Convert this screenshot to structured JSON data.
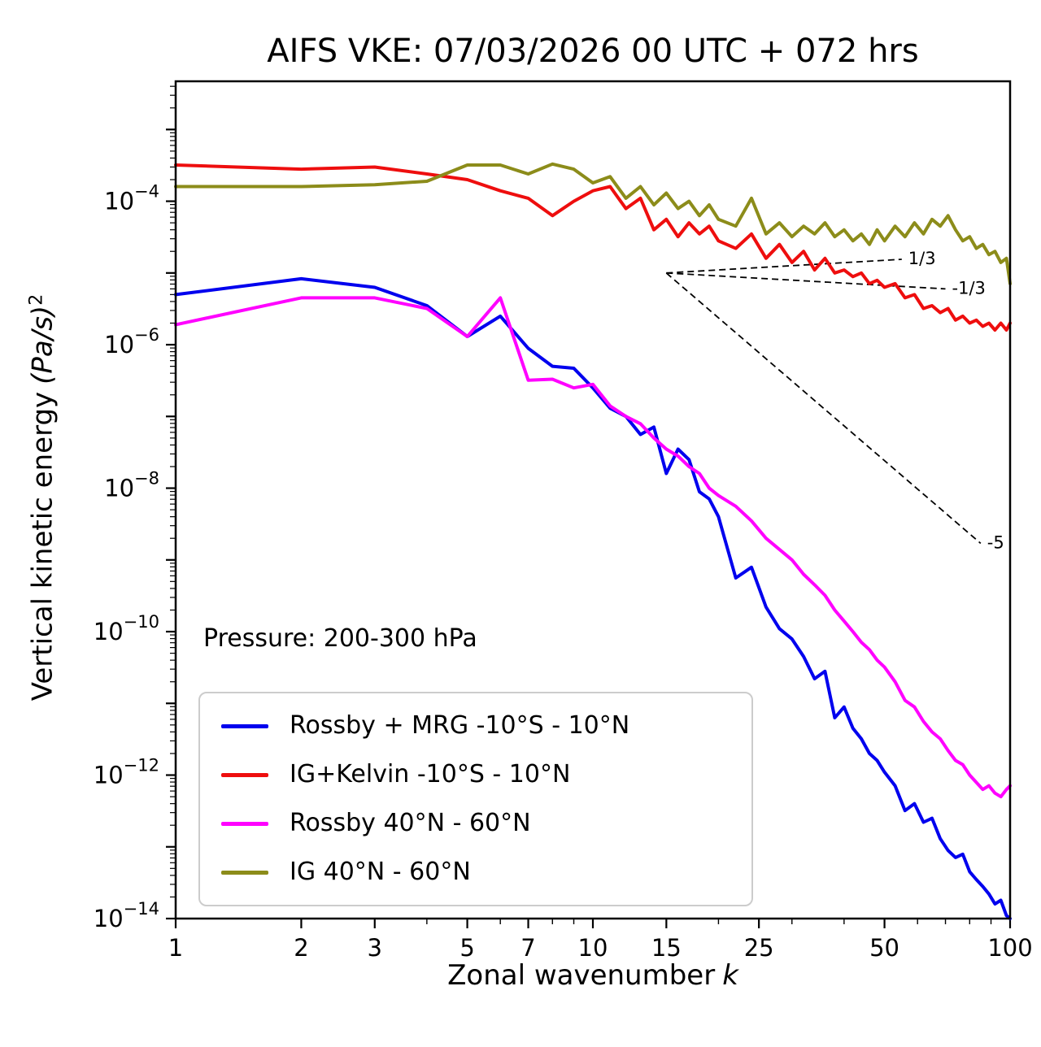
{
  "annotation": {
    "pressure_label": "Pressure: 200-300 hPa"
  },
  "chart_data": {
    "type": "line",
    "title": "AIFS VKE: 07/03/2026 00 UTC + 072 hrs",
    "xlabel": "Zonal wavenumber",
    "xlabel_variable": "k",
    "ylabel": "Vertical kinetic energy",
    "ylabel_units": "(Pa/s)",
    "ylabel_units_exponent": "2",
    "xscale": "log",
    "yscale": "log",
    "grid": false,
    "legend_position": "lower left",
    "xlim": [
      1,
      100
    ],
    "ylim": [
      1e-14,
      0.0047
    ],
    "xticks": [
      1,
      2,
      3,
      5,
      7,
      10,
      15,
      25,
      50,
      100
    ],
    "xticks_minor": [
      4,
      6,
      8,
      9,
      20,
      30,
      40,
      60,
      70,
      80,
      90
    ],
    "ytick_exponents": [
      -4,
      -6,
      -8,
      -10,
      -12,
      -14
    ],
    "x": [
      1,
      2,
      3,
      4,
      5,
      6,
      7,
      8,
      9,
      10,
      11,
      12,
      13,
      14,
      15,
      16,
      17,
      18,
      19,
      20,
      22,
      24,
      26,
      28,
      30,
      32,
      34,
      36,
      38,
      40,
      42,
      44,
      46,
      48,
      50,
      53,
      56,
      59,
      62,
      65,
      68,
      71,
      74,
      77,
      80,
      83,
      86,
      89,
      92,
      95,
      98,
      100
    ],
    "series": [
      {
        "id": "rossby-mrg-tropics",
        "label": "Rossby + MRG -10°S - 10°N",
        "color": "#0000ee",
        "values": [
          5e-06,
          8.3e-06,
          6.3e-06,
          3.5e-06,
          1.3e-06,
          2.5e-06,
          8.9e-07,
          5e-07,
          4.7e-07,
          2.5e-07,
          1.3e-07,
          1e-07,
          5.6e-08,
          7.1e-08,
          1.6e-08,
          3.5e-08,
          2.5e-08,
          8.9e-09,
          7.1e-09,
          4e-09,
          5.6e-10,
          7.9e-10,
          2.2e-10,
          1.1e-10,
          7.9e-11,
          4.5e-11,
          2.2e-11,
          2.8e-11,
          6.3e-12,
          8.9e-12,
          4.5e-12,
          3.2e-12,
          2e-12,
          1.6e-12,
          1.1e-12,
          7.1e-13,
          3.2e-13,
          4e-13,
          2.2e-13,
          2.5e-13,
          1.3e-13,
          8.9e-14,
          7.1e-14,
          7.9e-14,
          4.5e-14,
          3.5e-14,
          2.8e-14,
          2.2e-14,
          1.6e-14,
          1.8e-14,
          1.1e-14,
          1e-14
        ]
      },
      {
        "id": "ig-kelvin-tropics",
        "label": "IG+Kelvin -10°S - 10°N",
        "color": "#ee0e0e",
        "values": [
          0.00032,
          0.00028,
          0.0003,
          0.00024,
          0.0002,
          0.00014,
          0.00011,
          6.3e-05,
          0.0001,
          0.00014,
          0.00016,
          7.9e-05,
          0.00011,
          4e-05,
          5.6e-05,
          3.2e-05,
          5e-05,
          3.5e-05,
          4.5e-05,
          2.8e-05,
          2.2e-05,
          3.5e-05,
          1.6e-05,
          2.5e-05,
          1.4e-05,
          2e-05,
          1.1e-05,
          1.6e-05,
          1e-05,
          1.1e-05,
          8.9e-06,
          1e-05,
          7.1e-06,
          7.9e-06,
          6.3e-06,
          7.1e-06,
          4.5e-06,
          5e-06,
          3.2e-06,
          3.5e-06,
          2.8e-06,
          3.2e-06,
          2.2e-06,
          2.5e-06,
          2e-06,
          2.2e-06,
          1.8e-06,
          2e-06,
          1.6e-06,
          2e-06,
          1.6e-06,
          2e-06
        ]
      },
      {
        "id": "rossby-midlat",
        "label": "Rossby 40°N - 60°N",
        "color": "#ff00ff",
        "values": [
          1.9e-06,
          4.5e-06,
          4.5e-06,
          3.2e-06,
          1.3e-06,
          4.5e-06,
          3.2e-07,
          3.3e-07,
          2.5e-07,
          2.8e-07,
          1.4e-07,
          1e-07,
          7.9e-08,
          5e-08,
          3.5e-08,
          2.8e-08,
          2e-08,
          1.6e-08,
          1e-08,
          7.9e-09,
          5.6e-09,
          3.5e-09,
          2e-09,
          1.4e-09,
          1e-09,
          6.3e-10,
          4.5e-10,
          3.2e-10,
          2e-10,
          1.4e-10,
          1e-10,
          7.1e-11,
          5.6e-11,
          4e-11,
          3.2e-11,
          2e-11,
          1.1e-11,
          8.9e-12,
          5.6e-12,
          4e-12,
          3.2e-12,
          2.2e-12,
          1.6e-12,
          1.4e-12,
          1e-12,
          7.9e-13,
          6.3e-13,
          7.1e-13,
          5.6e-13,
          5e-13,
          6.3e-13,
          7.1e-13
        ]
      },
      {
        "id": "ig-midlat",
        "label": "IG 40°N - 60°N",
        "color": "#8c8c1a",
        "values": [
          0.00016,
          0.00016,
          0.00017,
          0.00019,
          0.00032,
          0.00032,
          0.00024,
          0.00033,
          0.00028,
          0.00018,
          0.00022,
          0.00011,
          0.00016,
          8.9e-05,
          0.00013,
          7.9e-05,
          0.0001,
          6.3e-05,
          8.9e-05,
          5.6e-05,
          4.5e-05,
          0.00011,
          3.5e-05,
          5e-05,
          3.2e-05,
          4.5e-05,
          3.5e-05,
          5e-05,
          3.2e-05,
          4e-05,
          2.8e-05,
          3.5e-05,
          2.5e-05,
          4e-05,
          2.8e-05,
          4.5e-05,
          3.2e-05,
          5e-05,
          3.5e-05,
          5.6e-05,
          4.5e-05,
          6.3e-05,
          4e-05,
          2.8e-05,
          3.2e-05,
          2.2e-05,
          2.5e-05,
          1.8e-05,
          2e-05,
          1.4e-05,
          1.6e-05,
          7.1e-06
        ]
      }
    ],
    "reference_lines": [
      {
        "label": "1/3",
        "slope": "1/3",
        "x": [
          15,
          55
        ],
        "y": [
          1e-05,
          1.55e-05
        ]
      },
      {
        "label": "-1/3",
        "slope": "-1/3",
        "x": [
          15,
          70
        ],
        "y": [
          1e-05,
          6e-06
        ]
      },
      {
        "label": "-5",
        "slope": "-5",
        "x": [
          15,
          85
        ],
        "y": [
          1e-05,
          1.7e-09
        ]
      }
    ]
  }
}
